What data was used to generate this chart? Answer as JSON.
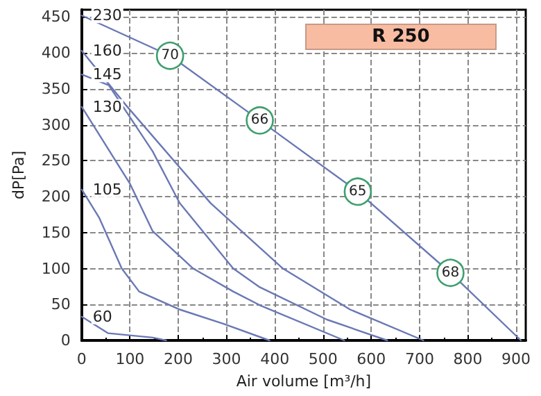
{
  "chart_data": {
    "type": "line",
    "title": "R 250",
    "xlabel": "Air volume [m³/h]",
    "ylabel": "dP[Pa]",
    "xlim": [
      0,
      920
    ],
    "ylim": [
      0,
      460
    ],
    "xticks": [
      0,
      100,
      200,
      300,
      400,
      500,
      600,
      700,
      800,
      900
    ],
    "yticks": [
      0,
      50,
      100,
      150,
      200,
      250,
      300,
      350,
      400,
      450
    ],
    "grid": true,
    "legend": false,
    "line_style": "solid",
    "series": [
      {
        "name": "230",
        "color": "#6a78b4",
        "x": [
          0,
          183,
          369,
          572,
          764,
          910
        ],
        "values": [
          452,
          396,
          306,
          207,
          94,
          0
        ]
      },
      {
        "name": "160",
        "color": "#6a78b4",
        "x": [
          0,
          92,
          267,
          417,
          556,
          708
        ],
        "values": [
          403,
          327,
          191,
          100,
          43,
          0
        ]
      },
      {
        "name": "145",
        "color": "#6a78b4",
        "x": [
          0,
          56,
          147,
          203,
          314,
          369,
          508,
          633
        ],
        "values": [
          370,
          355,
          263,
          191,
          100,
          74,
          29,
          0
        ]
      },
      {
        "name": "130",
        "color": "#6a78b4",
        "x": [
          0,
          100,
          147,
          231,
          314,
          369,
          544
        ],
        "values": [
          325,
          218,
          152,
          100,
          68,
          49,
          0
        ]
      },
      {
        "name": "105",
        "color": "#6a78b4",
        "x": [
          0,
          36,
          83,
          119,
          203,
          294,
          389
        ],
        "values": [
          210,
          171,
          100,
          68,
          43,
          23,
          0
        ]
      },
      {
        "name": "60",
        "color": "#6a78b4",
        "x": [
          0,
          55,
          147,
          175
        ],
        "values": [
          33,
          10,
          4,
          0
        ]
      }
    ],
    "annotations": [
      {
        "text": "70",
        "x": 183,
        "y": 396
      },
      {
        "text": "66",
        "x": 369,
        "y": 306
      },
      {
        "text": "65",
        "x": 572,
        "y": 207
      },
      {
        "text": "68",
        "x": 764,
        "y": 94
      }
    ]
  }
}
